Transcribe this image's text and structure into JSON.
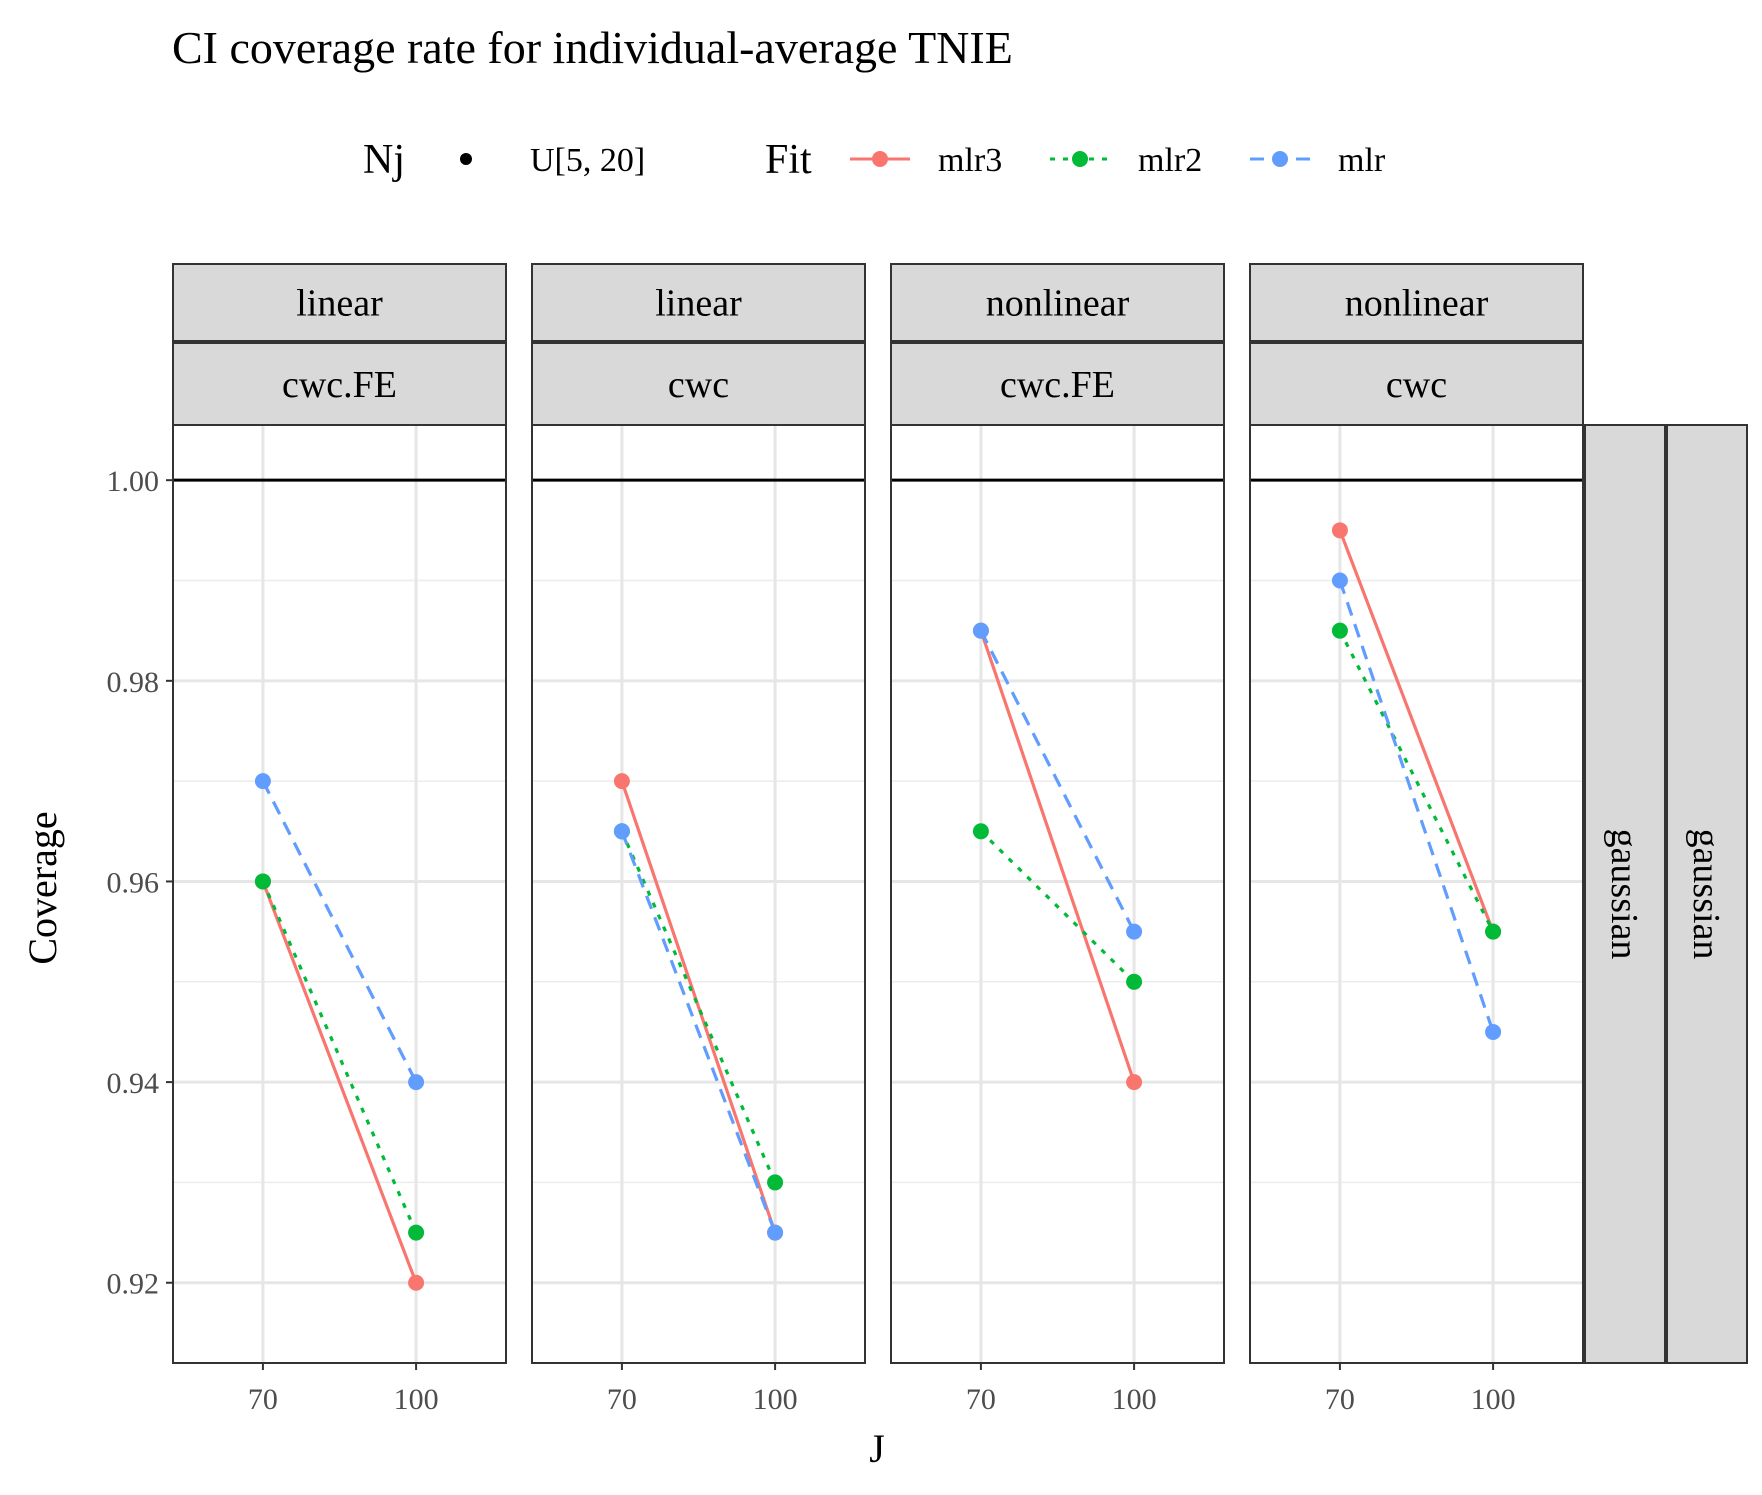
{
  "chart_data": {
    "type": "line",
    "title": "CI coverage rate for individual-average TNIE",
    "xlabel": "J",
    "ylabel": "Coverage",
    "x_categories": [
      70,
      100
    ],
    "ylim": [
      0.912,
      1.0055
    ],
    "y_ticks": [
      0.92,
      0.94,
      0.96,
      0.98,
      1.0
    ],
    "y_tick_labels": [
      "0.92",
      "0.94",
      "0.96",
      "0.98",
      "1.00"
    ],
    "reference_line": 1.0,
    "grid": true,
    "legend_position": "top",
    "legend": {
      "nj_title": "Nj",
      "nj_label": "U[5, 20]",
      "fit_title": "Fit",
      "fit_entries": [
        "mlr3",
        "mlr2",
        "mlr"
      ]
    },
    "series_style": {
      "mlr3": {
        "color": "#F8766D",
        "dash": ""
      },
      "mlr2": {
        "color": "#00BA38",
        "dash": "5,8"
      },
      "mlr": {
        "color": "#619CFF",
        "dash": "14,9"
      }
    },
    "row_strips": [
      "gaussian",
      "gaussian"
    ],
    "panels": [
      {
        "strip1": "linear",
        "strip2": "cwc.FE",
        "series": [
          {
            "name": "mlr3",
            "values": [
              0.96,
              0.92
            ]
          },
          {
            "name": "mlr2",
            "values": [
              0.96,
              0.925
            ]
          },
          {
            "name": "mlr",
            "values": [
              0.97,
              0.94
            ]
          }
        ]
      },
      {
        "strip1": "linear",
        "strip2": "cwc",
        "series": [
          {
            "name": "mlr3",
            "values": [
              0.97,
              0.925
            ]
          },
          {
            "name": "mlr2",
            "values": [
              0.965,
              0.93
            ]
          },
          {
            "name": "mlr",
            "values": [
              0.965,
              0.925
            ]
          }
        ]
      },
      {
        "strip1": "nonlinear",
        "strip2": "cwc.FE",
        "series": [
          {
            "name": "mlr3",
            "values": [
              0.985,
              0.94
            ]
          },
          {
            "name": "mlr2",
            "values": [
              0.965,
              0.95
            ]
          },
          {
            "name": "mlr",
            "values": [
              0.985,
              0.955
            ]
          }
        ]
      },
      {
        "strip1": "nonlinear",
        "strip2": "cwc",
        "series": [
          {
            "name": "mlr3",
            "values": [
              0.995,
              0.955
            ]
          },
          {
            "name": "mlr2",
            "values": [
              0.985,
              0.955
            ]
          },
          {
            "name": "mlr",
            "values": [
              0.99,
              0.945
            ]
          }
        ]
      }
    ]
  }
}
